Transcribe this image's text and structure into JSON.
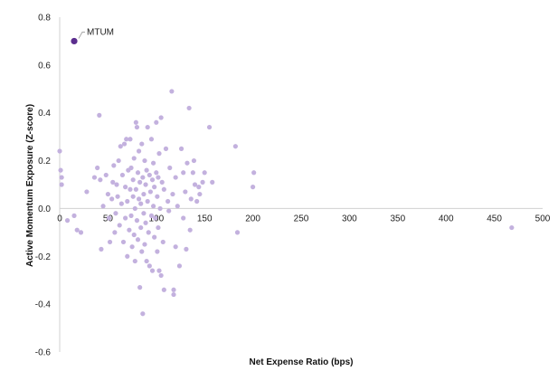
{
  "chart_data": {
    "type": "scatter",
    "xlabel": "Net Expense Ratio (bps)",
    "ylabel": "Active Momentum Exposure (Z-score)",
    "xlim": [
      0,
      500
    ],
    "ylim": [
      -0.6,
      0.8
    ],
    "x_ticks": [
      "0",
      "50",
      "100",
      "150",
      "200",
      "250",
      "300",
      "350",
      "400",
      "450",
      "500"
    ],
    "y_ticks": [
      "0.8",
      "0.6",
      "0.4",
      "0.2",
      "0.0",
      "-0.2",
      "-0.4",
      "-0.6"
    ],
    "grid": false,
    "colors": {
      "points": "#c3b1de",
      "highlight": "#5b2d8e",
      "axis": "#d0d0d0"
    },
    "highlight": {
      "label": "MTUM",
      "x": 15,
      "y": 0.7
    },
    "points": [
      [
        0,
        0.24
      ],
      [
        1,
        0.16
      ],
      [
        2,
        0.1
      ],
      [
        2,
        0.13
      ],
      [
        8,
        -0.05
      ],
      [
        15,
        -0.03
      ],
      [
        18,
        -0.09
      ],
      [
        22,
        -0.1
      ],
      [
        28,
        0.07
      ],
      [
        36,
        0.13
      ],
      [
        39,
        0.17
      ],
      [
        41,
        0.39
      ],
      [
        42,
        0.12
      ],
      [
        43,
        -0.17
      ],
      [
        45,
        0.01
      ],
      [
        48,
        0.14
      ],
      [
        50,
        0.06
      ],
      [
        51,
        -0.04
      ],
      [
        52,
        -0.14
      ],
      [
        54,
        0.04
      ],
      [
        55,
        0.11
      ],
      [
        56,
        0.18
      ],
      [
        57,
        -0.1
      ],
      [
        58,
        -0.02
      ],
      [
        59,
        0.1
      ],
      [
        60,
        0.05
      ],
      [
        61,
        0.2
      ],
      [
        62,
        -0.07
      ],
      [
        63,
        0.26
      ],
      [
        64,
        0.02
      ],
      [
        65,
        0.14
      ],
      [
        66,
        -0.14
      ],
      [
        67,
        0.27
      ],
      [
        68,
        0.09
      ],
      [
        68,
        -0.04
      ],
      [
        69,
        0.29
      ],
      [
        70,
        0.03
      ],
      [
        70,
        -0.2
      ],
      [
        71,
        0.16
      ],
      [
        72,
        -0.09
      ],
      [
        73,
        0.08
      ],
      [
        73,
        0.29
      ],
      [
        74,
        -0.03
      ],
      [
        74,
        0.17
      ],
      [
        75,
        -0.16
      ],
      [
        76,
        0.12
      ],
      [
        76,
        0.05
      ],
      [
        77,
        0.21
      ],
      [
        77,
        -0.11
      ],
      [
        78,
        0.0
      ],
      [
        78,
        -0.22
      ],
      [
        79,
        0.36
      ],
      [
        79,
        0.08
      ],
      [
        80,
        0.34
      ],
      [
        80,
        -0.05
      ],
      [
        81,
        0.15
      ],
      [
        81,
        -0.13
      ],
      [
        82,
        0.04
      ],
      [
        82,
        0.24
      ],
      [
        83,
        -0.33
      ],
      [
        83,
        0.11
      ],
      [
        84,
        -0.08
      ],
      [
        84,
        0.02
      ],
      [
        85,
        0.27
      ],
      [
        85,
        -0.18
      ],
      [
        86,
        0.13
      ],
      [
        86,
        -0.44
      ],
      [
        87,
        0.06
      ],
      [
        87,
        -0.02
      ],
      [
        88,
        0.2
      ],
      [
        88,
        -0.15
      ],
      [
        89,
        0.1
      ],
      [
        89,
        -0.06
      ],
      [
        90,
        0.16
      ],
      [
        90,
        -0.22
      ],
      [
        91,
        0.34
      ],
      [
        91,
        0.03
      ],
      [
        92,
        -0.1
      ],
      [
        93,
        0.14
      ],
      [
        93,
        -0.24
      ],
      [
        94,
        0.07
      ],
      [
        95,
        0.29
      ],
      [
        95,
        -0.03
      ],
      [
        96,
        0.12
      ],
      [
        96,
        -0.26
      ],
      [
        97,
        0.01
      ],
      [
        97,
        0.19
      ],
      [
        98,
        -0.12
      ],
      [
        98,
        0.09
      ],
      [
        99,
        -0.04
      ],
      [
        100,
        0.36
      ],
      [
        100,
        0.15
      ],
      [
        101,
        -0.18
      ],
      [
        101,
        0.05
      ],
      [
        102,
        -0.08
      ],
      [
        102,
        0.13
      ],
      [
        103,
        0.23
      ],
      [
        103,
        -0.26
      ],
      [
        104,
        0.0
      ],
      [
        105,
        0.38
      ],
      [
        105,
        -0.28
      ],
      [
        106,
        0.11
      ],
      [
        107,
        -0.14
      ],
      [
        108,
        0.08
      ],
      [
        108,
        -0.34
      ],
      [
        110,
        0.25
      ],
      [
        112,
        0.03
      ],
      [
        113,
        -0.01
      ],
      [
        114,
        0.17
      ],
      [
        116,
        0.49
      ],
      [
        117,
        0.06
      ],
      [
        118,
        -0.34
      ],
      [
        118,
        -0.36
      ],
      [
        120,
        0.13
      ],
      [
        120,
        -0.16
      ],
      [
        122,
        0.01
      ],
      [
        124,
        -0.24
      ],
      [
        126,
        0.25
      ],
      [
        128,
        0.15
      ],
      [
        128,
        -0.04
      ],
      [
        130,
        0.07
      ],
      [
        131,
        -0.17
      ],
      [
        132,
        0.19
      ],
      [
        134,
        0.42
      ],
      [
        135,
        -0.09
      ],
      [
        136,
        0.04
      ],
      [
        138,
        0.15
      ],
      [
        139,
        0.2
      ],
      [
        140,
        0.1
      ],
      [
        142,
        0.03
      ],
      [
        144,
        0.09
      ],
      [
        145,
        0.06
      ],
      [
        148,
        0.11
      ],
      [
        150,
        0.15
      ],
      [
        155,
        0.34
      ],
      [
        158,
        0.11
      ],
      [
        182,
        0.26
      ],
      [
        184,
        -0.1
      ],
      [
        200,
        0.09
      ],
      [
        201,
        0.15
      ],
      [
        468,
        -0.08
      ]
    ]
  }
}
